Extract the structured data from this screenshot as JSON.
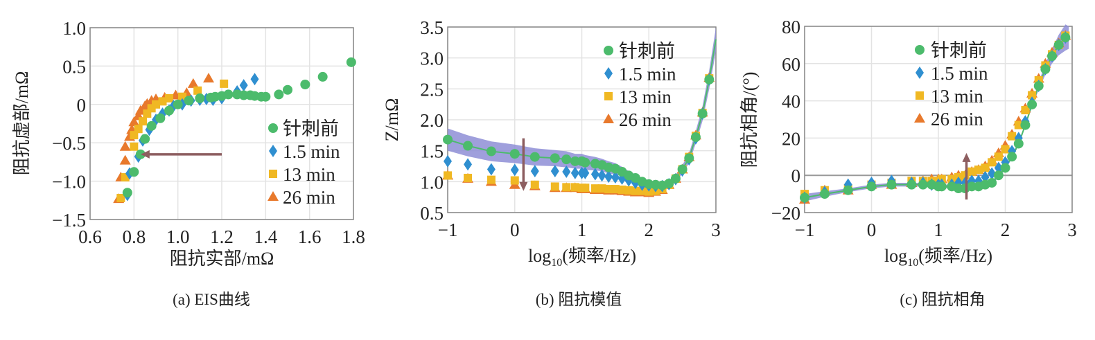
{
  "colors": {
    "before": "#4cbb6c",
    "m1_5": "#2f8fd0",
    "m13": "#f0b823",
    "m26": "#e8792c",
    "arrow": "#8d5e60",
    "band": "#8e8ed6",
    "grid": "#e3e3e3"
  },
  "legend": [
    "针刺前",
    "1.5 min",
    "13 min",
    "26 min"
  ],
  "chart_data": [
    {
      "type": "scatter",
      "caption": "(a) EIS曲线",
      "xlabel": "阻抗实部/mΩ",
      "ylabel": "阻抗虚部/mΩ",
      "xlim": [
        0.6,
        1.8
      ],
      "ylim": [
        -1.5,
        1.0
      ],
      "xticks": [
        "0.6",
        "0.8",
        "1.0",
        "1.2",
        "1.4",
        "1.6",
        "1.8"
      ],
      "yticks": [
        "-1.5",
        "-1.0",
        "-0.5",
        "0",
        "0.5",
        "1.0"
      ],
      "legend_position": "bottom-right",
      "grid": true,
      "arrow": {
        "from": [
          1.2,
          -0.65
        ],
        "to": [
          0.83,
          -0.65
        ]
      },
      "series": [
        {
          "name": "针刺前",
          "marker": "circle",
          "points": [
            [
              0.77,
              -1.15
            ],
            [
              0.8,
              -0.88
            ],
            [
              0.83,
              -0.65
            ],
            [
              0.85,
              -0.45
            ],
            [
              0.88,
              -0.28
            ],
            [
              0.92,
              -0.18
            ],
            [
              0.96,
              -0.08
            ],
            [
              1.0,
              0.0
            ],
            [
              1.05,
              0.05
            ],
            [
              1.1,
              0.08
            ],
            [
              1.15,
              0.09
            ],
            [
              1.17,
              0.1
            ],
            [
              1.2,
              0.11
            ],
            [
              1.23,
              0.13
            ],
            [
              1.27,
              0.13
            ],
            [
              1.3,
              0.12
            ],
            [
              1.33,
              0.12
            ],
            [
              1.35,
              0.11
            ],
            [
              1.38,
              0.1
            ],
            [
              1.4,
              0.1
            ],
            [
              1.46,
              0.13
            ],
            [
              1.5,
              0.19
            ],
            [
              1.58,
              0.26
            ],
            [
              1.66,
              0.36
            ],
            [
              1.79,
              0.55
            ]
          ]
        },
        {
          "name": "1.5 min",
          "marker": "diamond",
          "points": [
            [
              0.77,
              -1.18
            ],
            [
              0.78,
              -0.9
            ],
            [
              0.82,
              -0.68
            ],
            [
              0.84,
              -0.47
            ],
            [
              0.87,
              -0.33
            ],
            [
              0.9,
              -0.2
            ],
            [
              0.93,
              -0.12
            ],
            [
              0.96,
              -0.08
            ],
            [
              0.98,
              -0.02
            ],
            [
              1.02,
              0.0
            ],
            [
              1.06,
              0.05
            ],
            [
              1.1,
              0.06
            ],
            [
              1.13,
              0.07
            ],
            [
              1.16,
              0.06
            ],
            [
              1.2,
              0.08
            ],
            [
              1.27,
              0.17
            ],
            [
              1.3,
              0.25
            ],
            [
              1.35,
              0.33
            ]
          ]
        },
        {
          "name": "13 min",
          "marker": "square",
          "points": [
            [
              0.74,
              -1.22
            ],
            [
              0.76,
              -0.95
            ],
            [
              0.8,
              -0.55
            ],
            [
              0.8,
              -0.4
            ],
            [
              0.82,
              -0.32
            ],
            [
              0.84,
              -0.22
            ],
            [
              0.86,
              -0.12
            ],
            [
              0.88,
              -0.05
            ],
            [
              0.9,
              0.0
            ],
            [
              0.93,
              0.04
            ],
            [
              0.96,
              0.08
            ],
            [
              1.02,
              0.1
            ],
            [
              1.09,
              0.18
            ],
            [
              1.21,
              0.27
            ]
          ]
        },
        {
          "name": "26 min",
          "marker": "triangle",
          "points": [
            [
              0.73,
              -1.23
            ],
            [
              0.74,
              -0.95
            ],
            [
              0.76,
              -0.73
            ],
            [
              0.76,
              -0.55
            ],
            [
              0.78,
              -0.42
            ],
            [
              0.79,
              -0.33
            ],
            [
              0.8,
              -0.23
            ],
            [
              0.82,
              -0.15
            ],
            [
              0.83,
              -0.08
            ],
            [
              0.85,
              -0.02
            ],
            [
              0.86,
              0.01
            ],
            [
              0.88,
              0.05
            ],
            [
              0.9,
              0.07
            ],
            [
              0.94,
              0.09
            ],
            [
              0.99,
              0.12
            ],
            [
              1.04,
              0.15
            ],
            [
              1.07,
              0.27
            ],
            [
              1.14,
              0.34
            ]
          ]
        }
      ]
    },
    {
      "type": "scatter",
      "caption": "(b) 阻抗模值",
      "xlabel": "log10(频率/Hz)",
      "ylabel": "Z/mΩ",
      "xlim": [
        -1,
        3
      ],
      "ylim": [
        0.5,
        3.5
      ],
      "xticks": [
        "-1",
        "0",
        "1",
        "2",
        "3"
      ],
      "yticks": [
        "0.5",
        "1.0",
        "1.5",
        "2.0",
        "2.5",
        "3.0",
        "3.5"
      ],
      "legend_position": "top-right",
      "grid": true,
      "arrow": {
        "from": [
          0.13,
          1.7
        ],
        "to": [
          0.13,
          0.85
        ]
      },
      "x": [
        -1,
        -0.7,
        -0.35,
        0,
        0.3,
        0.6,
        0.77,
        0.9,
        1.0,
        1.05,
        1.2,
        1.3,
        1.4,
        1.5,
        1.6,
        1.7,
        1.8,
        1.9,
        2.0,
        2.1,
        2.2,
        2.3,
        2.4,
        2.5,
        2.6,
        2.7,
        2.8,
        2.9
      ],
      "fit_end": [
        3.0,
        3.3
      ],
      "band_halfwidth": [
        0.18,
        0.17,
        0.16,
        0.15,
        0.14,
        0.13,
        0.13,
        0.12,
        0.12,
        0.12,
        0.11,
        0.1,
        0.1,
        0.09,
        0.08,
        0.07,
        0.06,
        0.05,
        0.05,
        0.05,
        0.05,
        0.05,
        0.06,
        0.07,
        0.08,
        0.1,
        0.12,
        0.15
      ],
      "series": [
        {
          "name": "针刺前",
          "marker": "circle",
          "values": [
            1.68,
            1.58,
            1.49,
            1.45,
            1.4,
            1.38,
            1.36,
            1.33,
            1.33,
            1.31,
            1.29,
            1.27,
            1.23,
            1.21,
            1.16,
            1.1,
            1.06,
            1.0,
            0.96,
            0.95,
            0.94,
            0.97,
            1.05,
            1.2,
            1.38,
            1.72,
            2.1,
            2.65
          ]
        },
        {
          "name": "1.5 min",
          "marker": "diamond",
          "values": [
            1.33,
            1.28,
            1.2,
            1.19,
            1.17,
            1.17,
            1.16,
            1.14,
            1.14,
            1.14,
            1.12,
            1.1,
            1.08,
            1.07,
            1.05,
            1.02,
            0.98,
            0.95,
            0.94,
            0.93,
            0.93,
            0.96,
            1.04,
            1.18,
            1.36,
            1.7,
            2.1,
            2.65
          ]
        },
        {
          "name": "13 min",
          "marker": "square",
          "values": [
            1.1,
            1.06,
            1.03,
            1.02,
            0.95,
            0.92,
            0.91,
            0.91,
            0.9,
            0.9,
            0.89,
            0.89,
            0.88,
            0.88,
            0.87,
            0.86,
            0.85,
            0.85,
            0.84,
            0.85,
            0.88,
            0.95,
            1.05,
            1.2,
            1.4,
            1.74,
            2.11,
            2.67
          ]
        },
        {
          "name": "26 min",
          "marker": "triangle",
          "values": [
            1.1,
            1.05,
            1.0,
            0.95,
            0.93,
            0.9,
            0.9,
            0.9,
            0.88,
            0.88,
            0.87,
            0.87,
            0.86,
            0.86,
            0.85,
            0.84,
            0.83,
            0.83,
            0.82,
            0.84,
            0.87,
            0.95,
            1.05,
            1.2,
            1.4,
            1.75,
            2.12,
            2.68
          ]
        }
      ]
    },
    {
      "type": "scatter",
      "caption": "(c) 阻抗相角",
      "xlabel": "log10(频率/Hz)",
      "ylabel": "阻抗相角/(°)",
      "xlim": [
        -1,
        3
      ],
      "ylim": [
        -20,
        80
      ],
      "xticks": [
        "-1",
        "0",
        "1",
        "2",
        "3"
      ],
      "yticks": [
        "-20",
        "0",
        "20",
        "40",
        "60",
        "80"
      ],
      "legend_position": "top-center",
      "grid": true,
      "zero_line": true,
      "arrow": {
        "from": [
          1.42,
          -13
        ],
        "to": [
          1.42,
          12
        ]
      },
      "x": [
        -1,
        -0.7,
        -0.35,
        0,
        0.3,
        0.6,
        0.77,
        0.9,
        1.0,
        1.05,
        1.2,
        1.3,
        1.4,
        1.5,
        1.6,
        1.7,
        1.8,
        1.9,
        2.0,
        2.1,
        2.2,
        2.3,
        2.4,
        2.5,
        2.6,
        2.7,
        2.8,
        2.9
      ],
      "fit_end": [
        2.95,
        77
      ],
      "band_halfwidth": [
        2,
        1.5,
        1,
        1,
        1,
        1,
        1,
        1,
        1,
        1,
        1,
        1,
        1,
        1,
        1,
        1,
        1,
        1,
        1,
        1,
        1,
        1,
        1.5,
        2,
        3,
        4,
        5.5,
        7
      ],
      "series": [
        {
          "name": "针刺前",
          "marker": "circle",
          "values": [
            -12,
            -10,
            -8,
            -6,
            -5,
            -5,
            -5,
            -5,
            -6,
            -6,
            -6,
            -7,
            -7,
            -6,
            -6,
            -5,
            -4,
            0,
            4,
            10,
            17,
            27,
            38,
            48,
            57,
            64,
            70,
            74
          ]
        },
        {
          "name": "1.5 min",
          "marker": "diamond",
          "values": [
            -12,
            -9,
            -5,
            -4,
            -3,
            -4,
            -4,
            -5,
            -5,
            -5,
            -5,
            -4,
            -4,
            -3,
            -3,
            -1,
            1,
            4,
            7,
            13,
            20,
            29,
            39,
            48,
            57,
            64,
            70,
            74
          ]
        },
        {
          "name": "13 min",
          "marker": "square",
          "values": [
            -10,
            -8,
            -7,
            -5,
            -4,
            -3,
            -3,
            -3,
            -3,
            -2,
            -2,
            -1,
            0,
            2,
            3,
            4,
            7,
            10,
            14,
            21,
            27,
            35,
            43,
            51,
            59,
            65,
            70,
            75
          ]
        },
        {
          "name": "26 min",
          "marker": "triangle",
          "values": [
            -13,
            -8,
            -8,
            -5,
            -5,
            -4,
            -3,
            -2,
            -2,
            -2,
            -1,
            0,
            0,
            2,
            3,
            5,
            8,
            12,
            16,
            22,
            29,
            36,
            44,
            52,
            60,
            66,
            71,
            75
          ]
        }
      ]
    }
  ]
}
